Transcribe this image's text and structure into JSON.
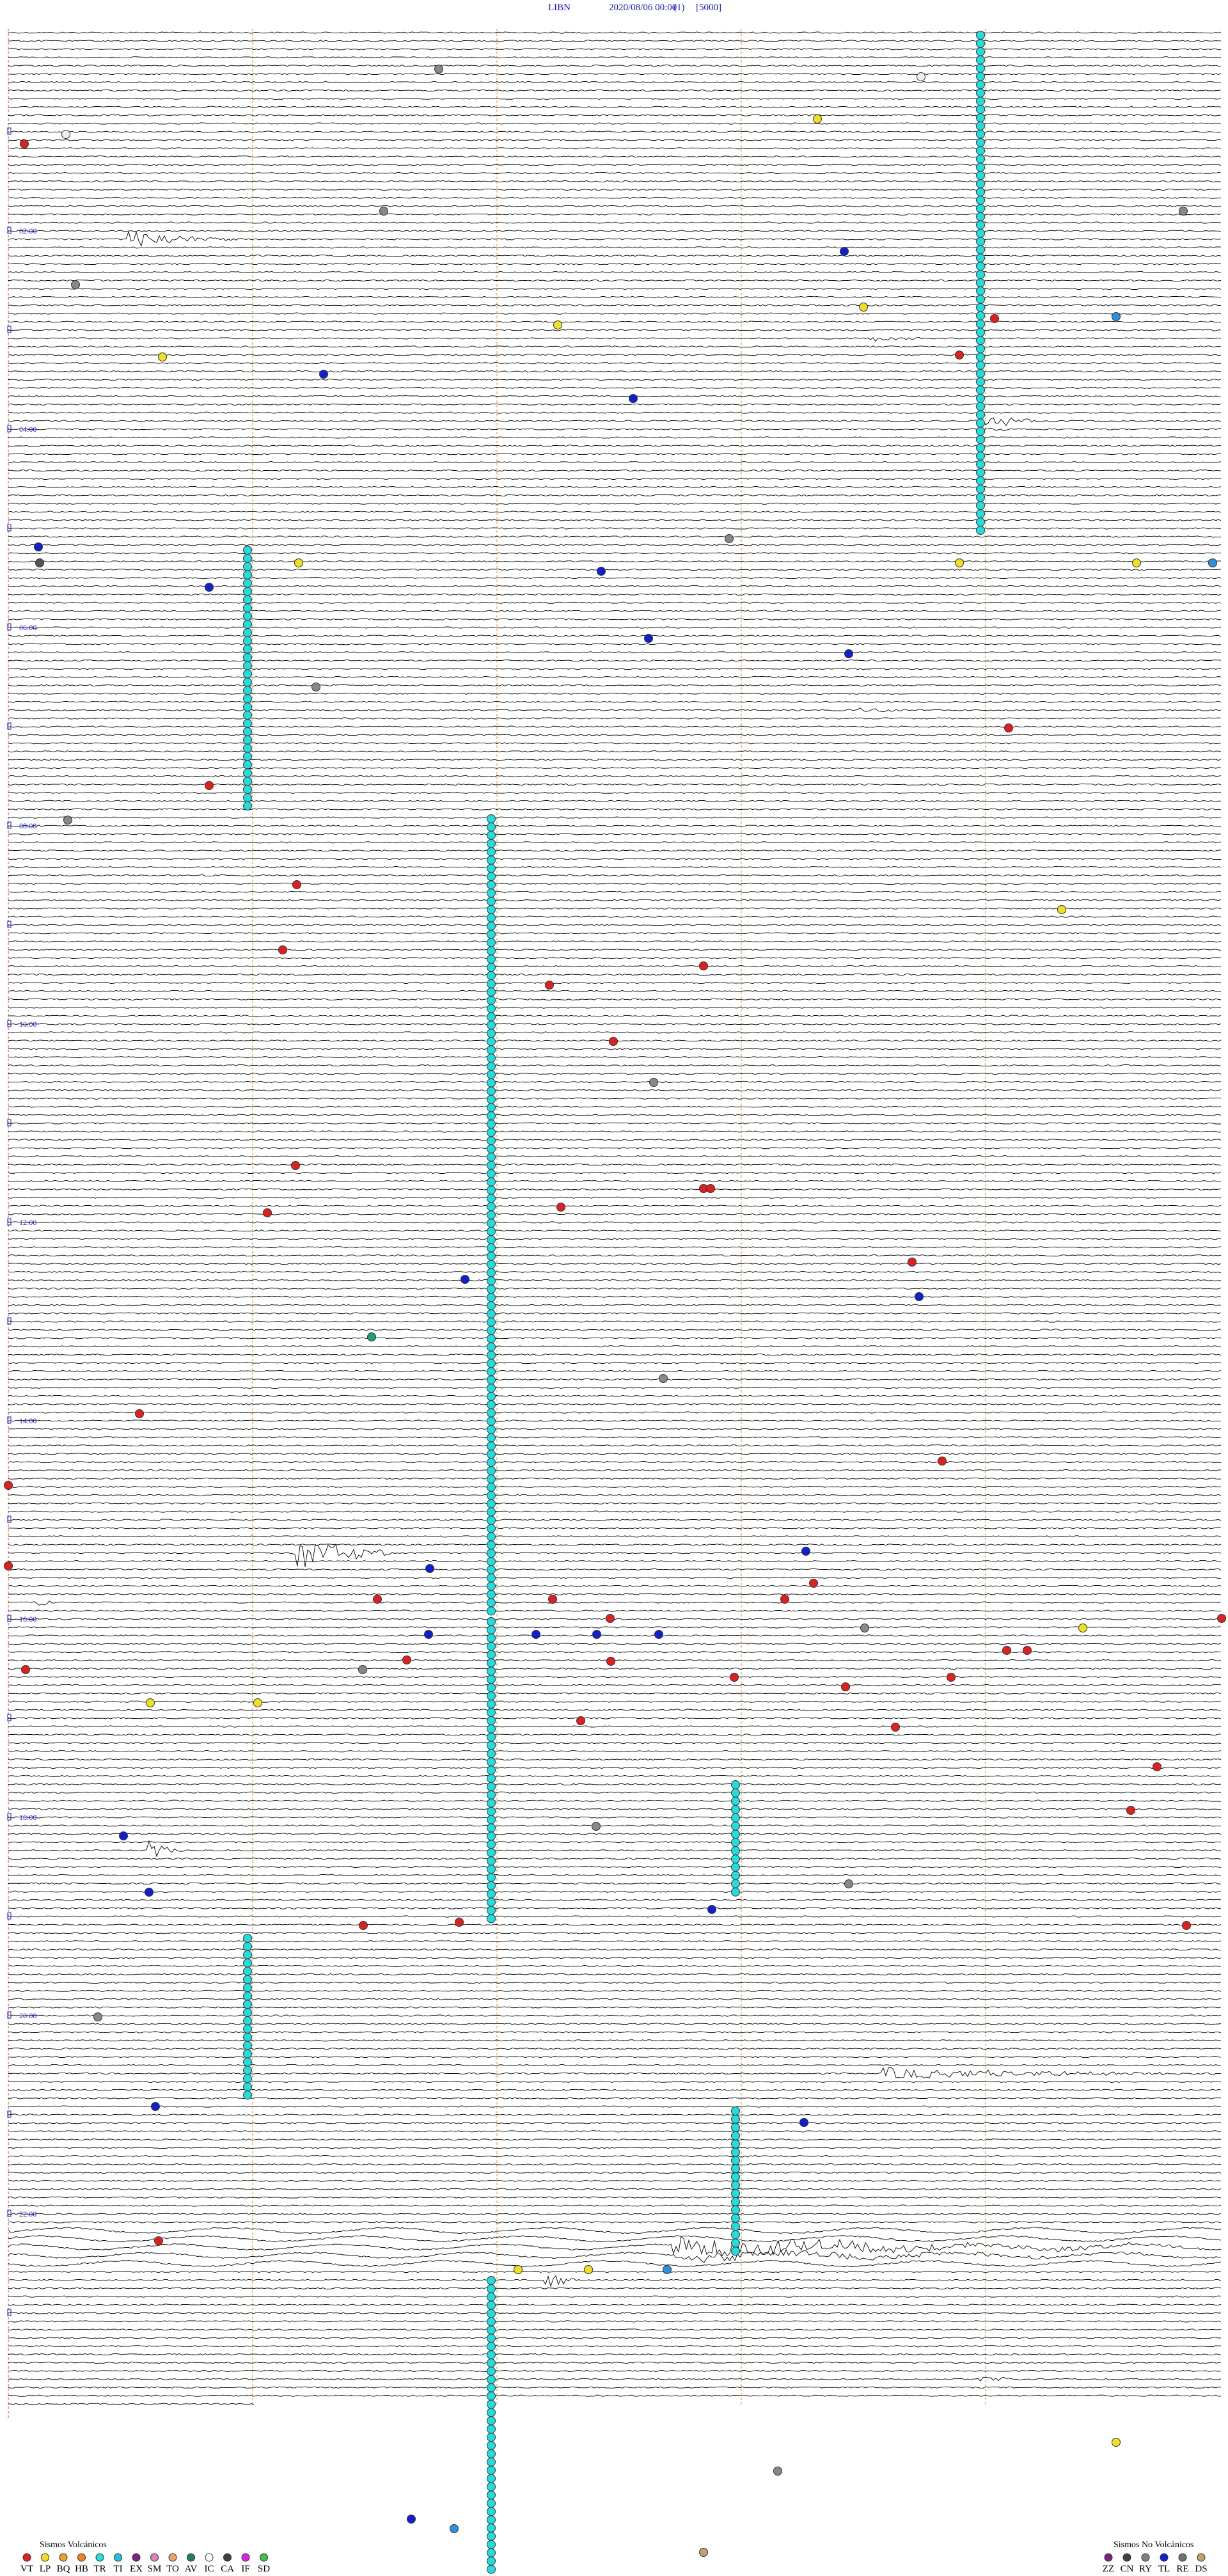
{
  "header": {
    "station": "LIBN",
    "datetime": "2020/08/06 00:00",
    "channel": "(1)",
    "scale": "[5000]"
  },
  "hour_labels": [
    "02:00",
    "04:00",
    "06:00",
    "08:00",
    "10:00",
    "12:00",
    "14:00",
    "16:00",
    "18:00",
    "20:00",
    "22:00"
  ],
  "legend": {
    "volcanic": {
      "title": "Sismos Volcánicos",
      "items": [
        "VT",
        "LP",
        "BQ",
        "HB",
        "TR",
        "TI",
        "EX",
        "SM",
        "TO",
        "AV",
        "IC",
        "CA",
        "IF",
        "SD"
      ]
    },
    "non_volcanic": {
      "title": "Sismos No Volcánicos",
      "items": [
        "ZZ",
        "CN",
        "RY",
        "TL",
        "RE",
        "DS"
      ]
    }
  }
}
